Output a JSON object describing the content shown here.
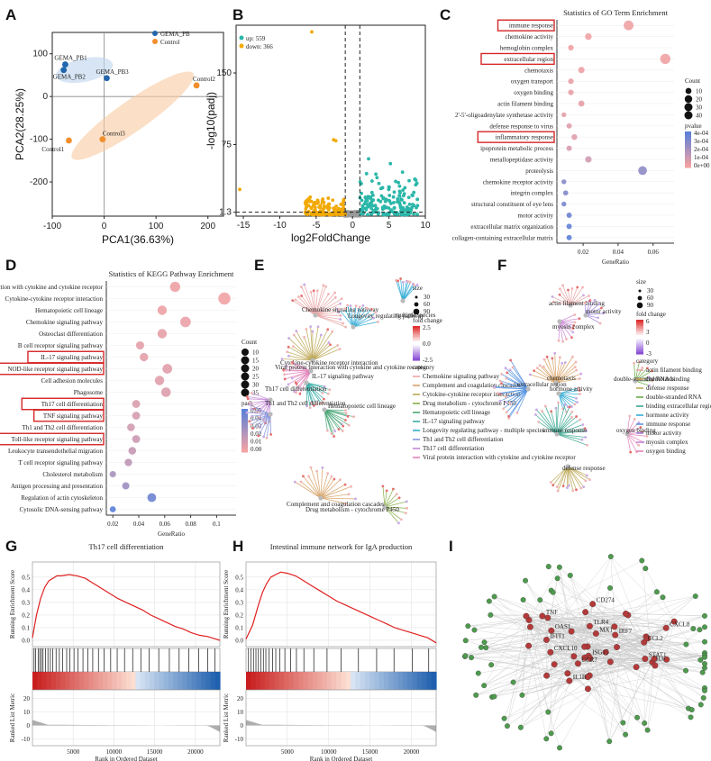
{
  "panels": [
    "A",
    "B",
    "C",
    "D",
    "E",
    "F",
    "G",
    "H",
    "I"
  ],
  "chart_data": [
    {
      "id": "A",
      "type": "scatter",
      "xlabel": "PCA1(36.63%)",
      "ylabel": "PCA2(28.25%)",
      "xlim": [
        -100,
        230
      ],
      "ylim": [
        -280,
        150
      ],
      "xticks": [
        -100,
        0,
        100,
        200
      ],
      "yticks": [
        -200,
        -100,
        0,
        100
      ],
      "legend": [
        "GEMA_PB",
        "Control"
      ],
      "colors": {
        "GEMA_PB": "#2166ac",
        "Control": "#f28e2b"
      },
      "series": [
        {
          "name": "GEMA_PB",
          "points": [
            {
              "label": "GEMA_PB1",
              "x": -75,
              "y": 75
            },
            {
              "label": "GEMA_PB2",
              "x": -78,
              "y": 62
            },
            {
              "label": "GEMA_PB3",
              "x": 5,
              "y": 43
            }
          ]
        },
        {
          "name": "Control",
          "points": [
            {
              "label": "Control1",
              "x": -68,
              "y": -103
            },
            {
              "label": "Control2",
              "x": 178,
              "y": 26
            },
            {
              "label": "Control3",
              "x": -3,
              "y": -100
            }
          ]
        }
      ]
    },
    {
      "id": "B",
      "type": "scatter",
      "xlabel": "log2FoldChange",
      "ylabel": "-log10(padj)",
      "xlim": [
        -16,
        10
      ],
      "ylim": [
        0,
        200
      ],
      "xticks": [
        -15,
        -10,
        -5,
        0,
        5,
        10
      ],
      "yticks": [
        1.3,
        75,
        150
      ],
      "legend": [
        {
          "label": "up: 559",
          "color": "#2ab7a9"
        },
        {
          "label": "down: 366",
          "color": "#f2a900"
        }
      ],
      "thresholds": {
        "x": [
          -1,
          1
        ],
        "y": 1.3
      }
    },
    {
      "id": "C",
      "type": "scatter",
      "title": "Statistics of GO Term Enrichment",
      "xlabel": "GeneRatio",
      "xticks": [
        0.02,
        0.04,
        0.06
      ],
      "xlim": [
        0.005,
        0.072
      ],
      "size_legend": {
        "title": "Count",
        "values": [
          10,
          20,
          30,
          40
        ]
      },
      "color_legend": {
        "title": "pvalue",
        "labels": [
          "4e-04",
          "3e-04",
          "2e-04",
          "1e-04",
          "0e+00"
        ]
      },
      "terms": [
        {
          "term": "immune response",
          "ratio": 0.046,
          "count": 40,
          "p": 1e-05,
          "boxed": true
        },
        {
          "term": "chemokine activity",
          "ratio": 0.023,
          "count": 14,
          "p": 1e-05
        },
        {
          "term": "hemoglobin complex",
          "ratio": 0.013,
          "count": 8,
          "p": 1e-05
        },
        {
          "term": "extracellular region",
          "ratio": 0.067,
          "count": 45,
          "p": 1e-05,
          "boxed": true
        },
        {
          "term": "chemotaxis",
          "ratio": 0.019,
          "count": 12,
          "p": 2e-05
        },
        {
          "term": "oxygen transport",
          "ratio": 0.013,
          "count": 8,
          "p": 3e-05
        },
        {
          "term": "oxygen binding",
          "ratio": 0.013,
          "count": 8,
          "p": 3e-05
        },
        {
          "term": "actin filament binding",
          "ratio": 0.019,
          "count": 11,
          "p": 4e-05
        },
        {
          "term": "2'-5'-oligoadenylate synthetase activity",
          "ratio": 0.009,
          "count": 5,
          "p": 5e-05
        },
        {
          "term": "defense response to virus",
          "ratio": 0.012,
          "count": 7,
          "p": 6e-05
        },
        {
          "term": "inflammatory response",
          "ratio": 0.015,
          "count": 9,
          "p": 6e-05,
          "boxed": true
        },
        {
          "term": "ipoprotein metabolic process",
          "ratio": 0.012,
          "count": 7,
          "p": 8e-05
        },
        {
          "term": "metallopeptidase activity",
          "ratio": 0.023,
          "count": 13,
          "p": 0.0001
        },
        {
          "term": "proteolysis",
          "ratio": 0.054,
          "count": 30,
          "p": 0.00028
        },
        {
          "term": "chemokine receptor activity",
          "ratio": 0.009,
          "count": 5,
          "p": 0.0003
        },
        {
          "term": "integrin complex",
          "ratio": 0.01,
          "count": 6,
          "p": 0.00032
        },
        {
          "term": "structural constituent of eye lens",
          "ratio": 0.009,
          "count": 5,
          "p": 0.00034
        },
        {
          "term": "motor activity",
          "ratio": 0.012,
          "count": 7,
          "p": 0.00037
        },
        {
          "term": "extracellular matrix organization",
          "ratio": 0.012,
          "count": 7,
          "p": 0.0004
        },
        {
          "term": "collagen-containing extracellular matrix",
          "ratio": 0.012,
          "count": 7,
          "p": 0.00042
        }
      ]
    },
    {
      "id": "D",
      "type": "scatter",
      "title": "Statistics of KEGG Pathway Enrichment",
      "xlabel": "GeneRatio",
      "xticks": [
        0.02,
        0.04,
        0.06,
        0.08,
        0.1
      ],
      "xlim": [
        0.015,
        0.115
      ],
      "size_legend": {
        "title": "Count",
        "values": [
          10,
          15,
          20,
          25,
          30,
          35
        ]
      },
      "color_legend": {
        "title": "padj",
        "labels": [
          "0.05",
          "0.04",
          "0.03",
          "0.02",
          "0.01",
          "0.00"
        ]
      },
      "terms": [
        {
          "term": "Viral protein interaction with cytokine and cytokine receptor",
          "ratio": 0.068,
          "count": 25,
          "p": 0.002
        },
        {
          "term": "Cytokine-cytokine receptor interaction",
          "ratio": 0.106,
          "count": 38,
          "p": 0.001
        },
        {
          "term": "Hematopoietic cell lineage",
          "ratio": 0.058,
          "count": 20,
          "p": 0.002
        },
        {
          "term": "Chemokine signaling pathway",
          "ratio": 0.076,
          "count": 27,
          "p": 0.003
        },
        {
          "term": "Osteoclast differentiation",
          "ratio": 0.058,
          "count": 20,
          "p": 0.004
        },
        {
          "term": "B cell receptor signaling pathway",
          "ratio": 0.041,
          "count": 14,
          "p": 0.005
        },
        {
          "term": "IL-17 signaling pathway",
          "ratio": 0.044,
          "count": 15,
          "p": 0.005,
          "boxed": true
        },
        {
          "term": "NOD-like receptor signaling pathway",
          "ratio": 0.062,
          "count": 22,
          "p": 0.006,
          "boxed": true
        },
        {
          "term": "Cell adhesion molecules",
          "ratio": 0.056,
          "count": 20,
          "p": 0.006
        },
        {
          "term": "Phagosome",
          "ratio": 0.061,
          "count": 21,
          "p": 0.007
        },
        {
          "term": "Th17 cell differentiation",
          "ratio": 0.038,
          "count": 13,
          "p": 0.008,
          "boxed": true
        },
        {
          "term": "TNF signaling pathway",
          "ratio": 0.038,
          "count": 13,
          "p": 0.009,
          "boxed": true
        },
        {
          "term": "Th1 and Th2 cell differentiation",
          "ratio": 0.034,
          "count": 12,
          "p": 0.01
        },
        {
          "term": "Toll-like receptor signaling pathway",
          "ratio": 0.038,
          "count": 13,
          "p": 0.012,
          "boxed": true
        },
        {
          "term": "Leukocyte transendothelial migration",
          "ratio": 0.035,
          "count": 12,
          "p": 0.014
        },
        {
          "term": "T cell receptor signaling pathway",
          "ratio": 0.032,
          "count": 11,
          "p": 0.016
        },
        {
          "term": "Cholesterol metabolism",
          "ratio": 0.02,
          "count": 7,
          "p": 0.022
        },
        {
          "term": "Antigen processing and presentation",
          "ratio": 0.03,
          "count": 10,
          "p": 0.026
        },
        {
          "term": "Regulation of actin cytoskeleton",
          "ratio": 0.05,
          "count": 17,
          "p": 0.04
        },
        {
          "term": "Cytosolic DNA-sensing pathway",
          "ratio": 0.02,
          "count": 6,
          "p": 0.045
        }
      ]
    },
    {
      "id": "G",
      "type": "line",
      "title": "Th17 cell differentiation",
      "xlabel": "Rank in Ordered Dataset",
      "ylabel_top": "Running Enrichment Score",
      "ylabel_bottom": "Ranked List Metric",
      "xticks": [
        5000,
        10000,
        15000,
        20000
      ],
      "xlim": [
        0,
        23000
      ],
      "yticks_top": [
        0.0,
        0.1,
        0.2,
        0.3,
        0.4,
        0.5
      ],
      "ylim_top": [
        -0.05,
        0.62
      ],
      "yticks_bottom": [
        -10,
        0,
        10,
        20
      ],
      "ylim_bottom": [
        -15,
        25
      ],
      "es_curve": [
        [
          0,
          0.02
        ],
        [
          500,
          0.2
        ],
        [
          1000,
          0.33
        ],
        [
          1500,
          0.42
        ],
        [
          2000,
          0.47
        ],
        [
          2500,
          0.49
        ],
        [
          3000,
          0.51
        ],
        [
          3500,
          0.51
        ],
        [
          4500,
          0.52
        ],
        [
          5500,
          0.51
        ],
        [
          6500,
          0.49
        ],
        [
          7500,
          0.45
        ],
        [
          8500,
          0.41
        ],
        [
          9500,
          0.37
        ],
        [
          10500,
          0.33
        ],
        [
          11500,
          0.3
        ],
        [
          12500,
          0.27
        ],
        [
          13500,
          0.24
        ],
        [
          14500,
          0.2
        ],
        [
          15500,
          0.17
        ],
        [
          16500,
          0.14
        ],
        [
          17500,
          0.11
        ],
        [
          18500,
          0.09
        ],
        [
          19500,
          0.06
        ],
        [
          20500,
          0.04
        ],
        [
          21500,
          0.03
        ],
        [
          22500,
          0.01
        ],
        [
          23000,
          0.0
        ]
      ],
      "hits": [
        200,
        400,
        700,
        900,
        1100,
        1300,
        1600,
        1900,
        2200,
        2500,
        2900,
        3300,
        3700,
        4200,
        4600,
        5100,
        5600,
        6200,
        6800,
        7400,
        8100,
        8800,
        9600,
        10400,
        11300,
        12300,
        13300,
        14300,
        15500,
        16800,
        18000,
        19200,
        20400,
        21500,
        22400
      ]
    },
    {
      "id": "H",
      "type": "line",
      "title": "Intestinal immune network for IgA production",
      "xlabel": "Rank in Ordered Dataset",
      "ylabel_top": "Running Enrichment Score",
      "ylabel_bottom": "Ranked List Metric",
      "xticks": [
        5000,
        10000,
        15000,
        20000
      ],
      "xlim": [
        0,
        23000
      ],
      "yticks_top": [
        0.0,
        0.1,
        0.2,
        0.3,
        0.4,
        0.5
      ],
      "ylim_top": [
        -0.05,
        0.62
      ],
      "yticks_bottom": [
        -10,
        0,
        10,
        20
      ],
      "ylim_bottom": [
        -15,
        25
      ],
      "es_curve": [
        [
          0,
          0.01
        ],
        [
          800,
          0.12
        ],
        [
          1500,
          0.28
        ],
        [
          2000,
          0.38
        ],
        [
          2500,
          0.45
        ],
        [
          3000,
          0.5
        ],
        [
          3600,
          0.52
        ],
        [
          4200,
          0.54
        ],
        [
          5000,
          0.53
        ],
        [
          6000,
          0.51
        ],
        [
          7000,
          0.47
        ],
        [
          8000,
          0.43
        ],
        [
          9000,
          0.39
        ],
        [
          10000,
          0.35
        ],
        [
          11000,
          0.31
        ],
        [
          12000,
          0.28
        ],
        [
          13000,
          0.25
        ],
        [
          14000,
          0.22
        ],
        [
          15000,
          0.19
        ],
        [
          16000,
          0.16
        ],
        [
          17000,
          0.13
        ],
        [
          18000,
          0.1
        ],
        [
          19000,
          0.08
        ],
        [
          20000,
          0.06
        ],
        [
          21000,
          0.04
        ],
        [
          22000,
          0.02
        ],
        [
          23000,
          -0.02
        ]
      ],
      "hits": [
        300,
        600,
        900,
        1200,
        1500,
        1800,
        2100,
        2400,
        2800,
        3200,
        3600,
        4100,
        4700,
        5400,
        6100,
        7000,
        8200,
        9800,
        11500,
        13600,
        15800,
        17900,
        20100,
        22100
      ]
    }
  ],
  "E": {
    "size_legend": {
      "title": "size",
      "values": [
        30,
        60,
        90
      ]
    },
    "color_legend": {
      "title": "fold change",
      "labels": [
        "2.5",
        "0.0",
        "-2.5"
      ]
    },
    "category_title": "category",
    "categories": [
      {
        "label": "Chemokine signaling pathway",
        "color": "#e8a0a0"
      },
      {
        "label": "Complement and coagulation cascades",
        "color": "#d59b5b"
      },
      {
        "label": "Cytokine-cytokine receptor interaction",
        "color": "#b8a24a"
      },
      {
        "label": "Drug metabolism - cytochrome P450",
        "color": "#80a83c"
      },
      {
        "label": "Hematopoietic cell lineage",
        "color": "#3fa16f"
      },
      {
        "label": "IL-17 signaling pathway",
        "color": "#2aa7a1"
      },
      {
        "label": "Longevity regulating pathway - multiple species",
        "color": "#25a6d2"
      },
      {
        "label": "Th1 and Th2 cell differentiation",
        "color": "#7b8fd8"
      },
      {
        "label": "Th17 cell differentiation",
        "color": "#c07fd4"
      },
      {
        "label": "Viral protein interaction with cytokine and cytokine receptor",
        "color": "#e07ab6"
      }
    ],
    "node_labels": [
      "Chemokine signaling pathway",
      "Longevity regulating pathway",
      "multiple species",
      "Cytokine-cytokine receptor interaction",
      "Viral protein interaction with cytokine and cytokine receptor",
      "IL-17 signaling pathway",
      "Th17 cell differentiation",
      "Th1 and Th2 cell differentiation",
      "Hematopoietic cell lineage",
      "Drug metabolism - cytochrome P450",
      "Complement and coagulation cascades"
    ]
  },
  "F": {
    "size_legend": {
      "title": "size",
      "values": [
        30,
        60,
        90
      ]
    },
    "color_legend": {
      "title": "fold change",
      "labels": [
        "6",
        "3",
        "0",
        "-3"
      ]
    },
    "category_title": "category",
    "categories": [
      {
        "label": "actin filament binding",
        "color": "#e8a0a0"
      },
      {
        "label": "chemotaxis",
        "color": "#d59b5b"
      },
      {
        "label": "defense response",
        "color": "#b8a24a"
      },
      {
        "label": "double-stranded RNA",
        "color": "#5ea33a"
      },
      {
        "label": "binding extracellular region",
        "color": "#2fa28a"
      },
      {
        "label": "hormone activity",
        "color": "#25a6d2"
      },
      {
        "label": "immune response",
        "color": "#4f8fe0"
      },
      {
        "label": "motor activity",
        "color": "#9b7fe0"
      },
      {
        "label": "myosin complex",
        "color": "#c97fd4"
      },
      {
        "label": "oxygen binding",
        "color": "#e07ab6"
      }
    ],
    "node_labels": [
      "actin filament binding",
      "motor activity",
      "myosin complex",
      "double-stranded RNA binding",
      "chemotaxis",
      "extracellular region",
      "hormone activity",
      "immune response",
      "defense response",
      "oxygen binding"
    ]
  },
  "I": {
    "description_hidden": true,
    "hub_nodes": 46,
    "outer_nodes": 70,
    "node_labels": [
      "IL6",
      "CXCL8",
      "IL1B",
      "TNF",
      "CCL2",
      "CXCL10",
      "STAT1",
      "IRF7",
      "ISG15",
      "MX1",
      "OAS1",
      "IFIT1",
      "CCR7",
      "CD274",
      "TLR4"
    ]
  }
}
